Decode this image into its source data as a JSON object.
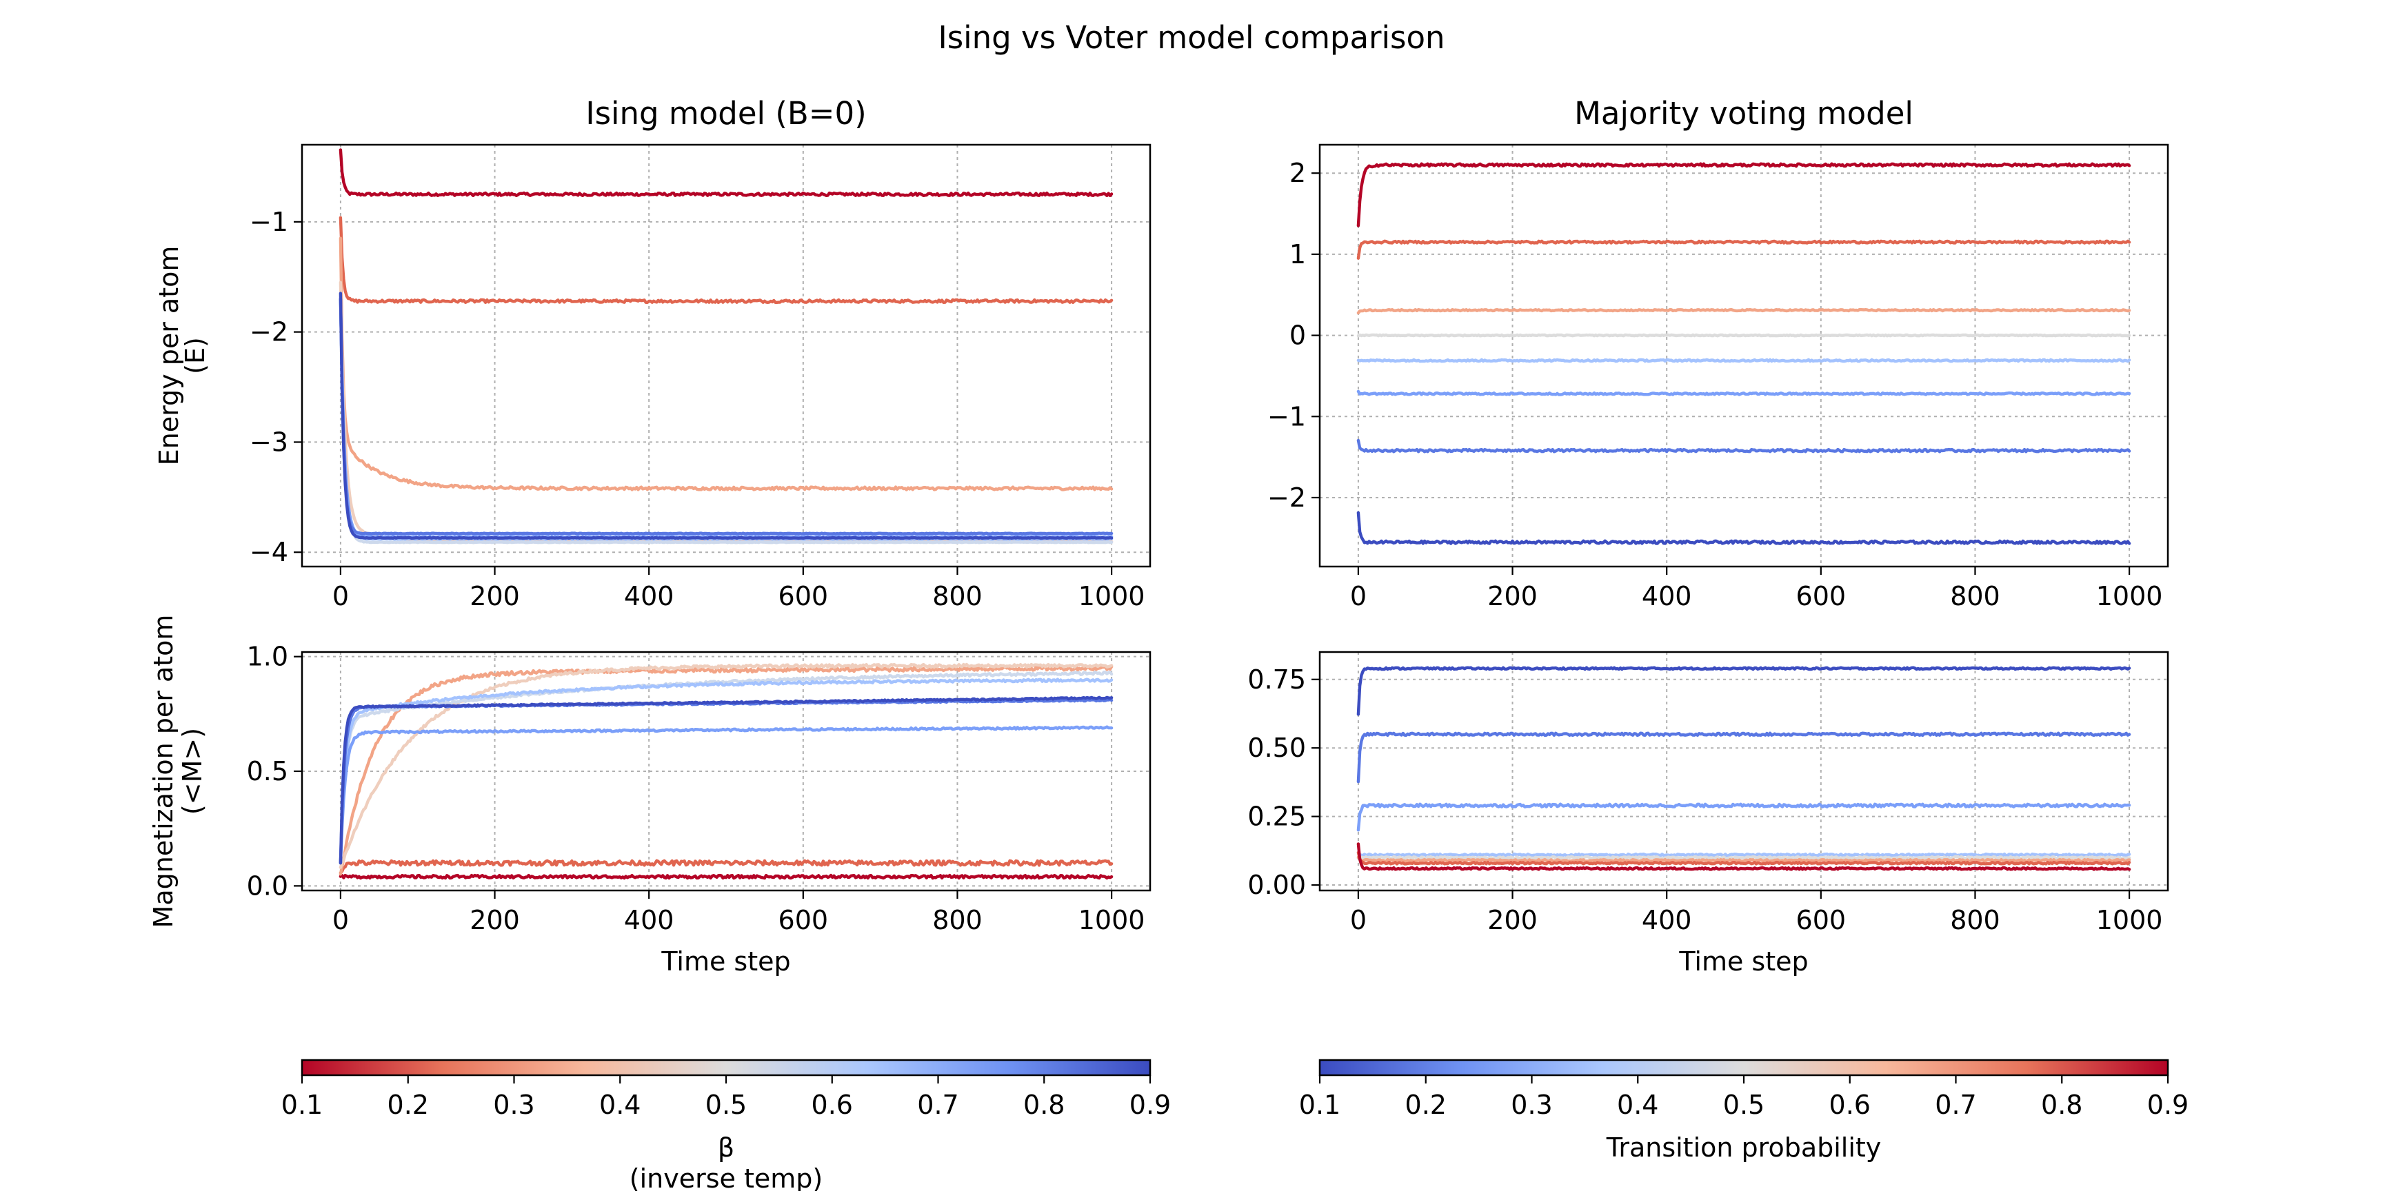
{
  "suptitle": "Ising vs Voter model comparison",
  "chart_data": [
    {
      "id": "ising_energy",
      "type": "line",
      "title": "Ising model (B=0)",
      "xlabel": "",
      "ylabel": [
        "Energy per atom",
        "(E)"
      ],
      "xlim": [
        -50,
        1050
      ],
      "ylim": [
        -4.13,
        -0.3
      ],
      "xticks": [
        0,
        200,
        400,
        600,
        800,
        1000
      ],
      "yticks": [
        -4,
        -3,
        -2,
        -1
      ],
      "ytick_labels": [
        "−4",
        "−3",
        "−2",
        "−1"
      ],
      "grid": true,
      "colormap": "coolwarm_r",
      "series": [
        {
          "param": 0.1,
          "color": "#b40426",
          "start": -0.35,
          "final": -0.75,
          "tau": 3,
          "noise": 0.012
        },
        {
          "param": 0.2,
          "color": "#e0654f",
          "start": -0.95,
          "final": -1.72,
          "tau": 3,
          "noise": 0.012
        },
        {
          "param": 0.3,
          "color": "#f2a486",
          "start": -1.6,
          "final": -3.42,
          "tau": 3,
          "noise": 0.012,
          "slow_amp": 0.45,
          "slow_tau": 45
        },
        {
          "param": 0.4,
          "color": "#efcebd",
          "start": -1.7,
          "final": -3.9,
          "tau": 6,
          "noise": 0.004,
          "slow_amp": 0.15,
          "slow_tau": 40
        },
        {
          "param": 0.5,
          "color": "#cdd9ec",
          "start": -1.7,
          "final": -3.91,
          "tau": 5,
          "noise": 0.003
        },
        {
          "param": 0.6,
          "color": "#a3c2fe",
          "start": -1.7,
          "final": -3.88,
          "tau": 5,
          "noise": 0.003
        },
        {
          "param": 0.7,
          "color": "#7b9ff9",
          "start": -1.7,
          "final": -3.86,
          "tau": 5,
          "noise": 0.003
        },
        {
          "param": 0.8,
          "color": "#5977e3",
          "start": -1.7,
          "final": -3.83,
          "tau": 4,
          "noise": 0.003
        },
        {
          "param": 0.9,
          "color": "#3b4cc0",
          "start": -1.65,
          "final": -3.87,
          "tau": 4,
          "noise": 0.003
        }
      ]
    },
    {
      "id": "voter_energy",
      "type": "line",
      "title": "Majority voting model",
      "xlabel": "",
      "ylabel": [],
      "xlim": [
        -50,
        1050
      ],
      "ylim": [
        -2.85,
        2.35
      ],
      "xticks": [
        0,
        200,
        400,
        600,
        800,
        1000
      ],
      "yticks": [
        -2,
        -1,
        0,
        1,
        2
      ],
      "ytick_labels": [
        "−2",
        "−1",
        "0",
        "1",
        "2"
      ],
      "grid": true,
      "colormap": "coolwarm",
      "series": [
        {
          "param": 0.9,
          "color": "#b40426",
          "start": 1.35,
          "final": 2.1,
          "tau": 4,
          "noise": 0.015
        },
        {
          "param": 0.8,
          "color": "#e0654f",
          "start": 0.95,
          "final": 1.15,
          "tau": 2,
          "noise": 0.012
        },
        {
          "param": 0.7,
          "color": "#f2a486",
          "start": 0.28,
          "final": 0.31,
          "tau": 2,
          "noise": 0.008
        },
        {
          "param": 0.6,
          "color": "#dcdcdc",
          "start": 0.0,
          "final": 0.0,
          "tau": 2,
          "noise": 0.006
        },
        {
          "param": 0.5,
          "color": "#a3c2fe",
          "start": -0.3,
          "final": -0.31,
          "tau": 2,
          "noise": 0.01
        },
        {
          "param": 0.4,
          "color": "#7b9ff9",
          "start": -0.7,
          "final": -0.72,
          "tau": 2,
          "noise": 0.01
        },
        {
          "param": 0.3,
          "color": "#5977e3",
          "start": -1.3,
          "final": -1.42,
          "tau": 2,
          "noise": 0.014
        },
        {
          "param": 0.2,
          "color": "#3b4cc0",
          "start": -2.2,
          "final": -2.55,
          "tau": 2,
          "noise": 0.016
        }
      ]
    },
    {
      "id": "ising_magnetization",
      "type": "line",
      "title": "",
      "xlabel": "Time step",
      "ylabel": [
        "Magnetization per atom",
        "(<M>)"
      ],
      "xlim": [
        -50,
        1050
      ],
      "ylim": [
        -0.02,
        1.02
      ],
      "xticks": [
        0,
        200,
        400,
        600,
        800,
        1000
      ],
      "yticks": [
        0.0,
        0.5,
        1.0
      ],
      "ytick_labels": [
        "0.0",
        "0.5",
        "1.0"
      ],
      "grid": true,
      "colormap": "coolwarm_r",
      "series": [
        {
          "param": 0.1,
          "color": "#b40426",
          "start": 0.04,
          "final": 0.04,
          "tau": 5,
          "noise": 0.006
        },
        {
          "param": 0.2,
          "color": "#e0654f",
          "start": 0.06,
          "final": 0.1,
          "tau": 5,
          "noise": 0.01
        },
        {
          "param": 0.3,
          "color": "#f2a486",
          "start": 0.05,
          "final": 0.93,
          "tau": 45,
          "noise": 0.008,
          "drift": 0.02
        },
        {
          "param": 0.4,
          "color": "#efcebd",
          "start": 0.08,
          "final": 0.96,
          "tau": 90,
          "noise": 0.006
        },
        {
          "param": 0.5,
          "color": "#cdd9ec",
          "start": 0.1,
          "final": 0.94,
          "tau": 6,
          "noise": 0.005,
          "plateau": 0.73,
          "slow_tau": 350
        },
        {
          "param": 0.6,
          "color": "#a3c2fe",
          "start": 0.1,
          "final": 0.9,
          "tau": 6,
          "noise": 0.005,
          "plateau": 0.75,
          "slow_tau": 250
        },
        {
          "param": 0.7,
          "color": "#7b9ff9",
          "start": 0.1,
          "final": 0.67,
          "tau": 6,
          "noise": 0.004,
          "drift": 0.02
        },
        {
          "param": 0.8,
          "color": "#5977e3",
          "start": 0.1,
          "final": 0.78,
          "tau": 5,
          "noise": 0.003,
          "drift": 0.03
        },
        {
          "param": 0.9,
          "color": "#3b4cc0",
          "start": 0.1,
          "final": 0.78,
          "tau": 4,
          "noise": 0.003,
          "drift": 0.04
        }
      ]
    },
    {
      "id": "voter_magnetization",
      "type": "line",
      "title": "",
      "xlabel": "Time step",
      "ylabel": [],
      "xlim": [
        -50,
        1050
      ],
      "ylim": [
        -0.02,
        0.85
      ],
      "xticks": [
        0,
        200,
        400,
        600,
        800,
        1000
      ],
      "yticks": [
        0.0,
        0.25,
        0.5,
        0.75
      ],
      "ytick_labels": [
        "0.00",
        "0.25",
        "0.50",
        "0.75"
      ],
      "grid": true,
      "colormap": "coolwarm",
      "series": [
        {
          "param": 0.2,
          "color": "#3b4cc0",
          "start": 0.62,
          "final": 0.79,
          "tau": 2,
          "noise": 0.003
        },
        {
          "param": 0.3,
          "color": "#5977e3",
          "start": 0.38,
          "final": 0.55,
          "tau": 2,
          "noise": 0.004
        },
        {
          "param": 0.4,
          "color": "#7b9ff9",
          "start": 0.2,
          "final": 0.29,
          "tau": 2,
          "noise": 0.005
        },
        {
          "param": 0.5,
          "color": "#a3c2fe",
          "start": 0.12,
          "final": 0.11,
          "tau": 2,
          "noise": 0.003
        },
        {
          "param": 0.6,
          "color": "#dcdcdc",
          "start": 0.1,
          "final": 0.1,
          "tau": 2,
          "noise": 0.003
        },
        {
          "param": 0.7,
          "color": "#f2a486",
          "start": 0.1,
          "final": 0.09,
          "tau": 2,
          "noise": 0.003
        },
        {
          "param": 0.8,
          "color": "#e0654f",
          "start": 0.12,
          "final": 0.08,
          "tau": 2,
          "noise": 0.003
        },
        {
          "param": 0.9,
          "color": "#b40426",
          "start": 0.15,
          "final": 0.06,
          "tau": 2,
          "noise": 0.003
        }
      ]
    }
  ],
  "colorbars": [
    {
      "id": "beta",
      "label": [
        "β",
        "(inverse temp)"
      ],
      "range": [
        0.1,
        0.9
      ],
      "ticks": [
        "0.1",
        "0.2",
        "0.3",
        "0.4",
        "0.5",
        "0.6",
        "0.7",
        "0.8",
        "0.9"
      ],
      "gradient": [
        "#b40426",
        "#e7745b",
        "#f7b89c",
        "#dddcdc",
        "#aac7fd",
        "#6f92f3",
        "#3b4cc0"
      ]
    },
    {
      "id": "transition",
      "label": [
        "Transition probability"
      ],
      "range": [
        0.1,
        0.9
      ],
      "ticks": [
        "0.1",
        "0.2",
        "0.3",
        "0.4",
        "0.5",
        "0.6",
        "0.7",
        "0.8",
        "0.9"
      ],
      "gradient": [
        "#3b4cc0",
        "#6f92f3",
        "#aac7fd",
        "#dddcdc",
        "#f7b89c",
        "#e7745b",
        "#b40426"
      ]
    }
  ]
}
